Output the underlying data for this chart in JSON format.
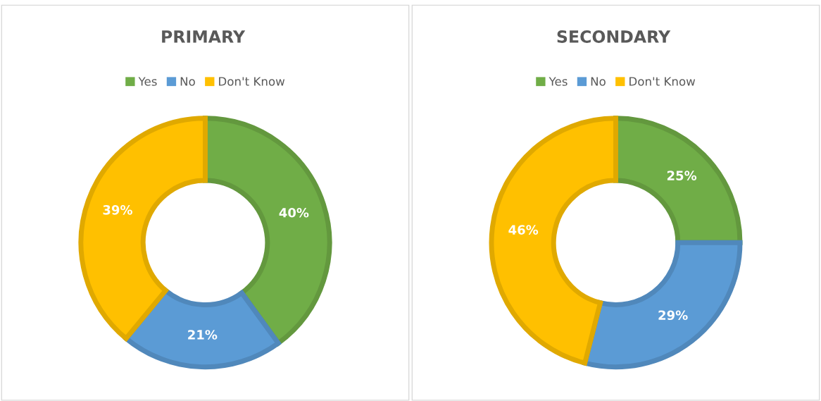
{
  "chart_data": [
    {
      "type": "donut",
      "title": "PRIMARY",
      "categories": [
        "Yes",
        "No",
        "Don't Know"
      ],
      "values": [
        40,
        21,
        39
      ],
      "colors": [
        "#70ad47",
        "#5b9bd5",
        "#ffc000"
      ],
      "value_labels": [
        "40%",
        "21%",
        "39%"
      ],
      "legend": "top"
    },
    {
      "type": "donut",
      "title": "SECONDARY",
      "categories": [
        "Yes",
        "No",
        "Don't Know"
      ],
      "values": [
        25,
        29,
        46
      ],
      "colors": [
        "#70ad47",
        "#5b9bd5",
        "#ffc000"
      ],
      "value_labels": [
        "25%",
        "29%",
        "46%"
      ],
      "legend": "top"
    }
  ]
}
